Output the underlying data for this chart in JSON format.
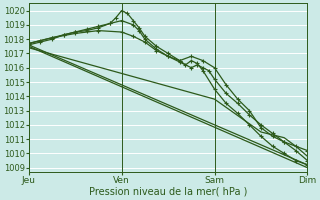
{
  "bg_color": "#cceae7",
  "grid_color": "#ffffff",
  "line_color": "#2d5a1b",
  "xlabel": "Pression niveau de la mer( hPa )",
  "yticks": [
    1009,
    1010,
    1011,
    1012,
    1013,
    1014,
    1015,
    1016,
    1017,
    1018,
    1019,
    1020
  ],
  "ylim": [
    1008.7,
    1020.5
  ],
  "xlim": [
    0,
    96
  ],
  "xtick_labels": [
    "Jeu",
    "Ven",
    "Sam",
    "Dim"
  ],
  "xtick_positions": [
    0,
    32,
    64,
    96
  ],
  "line_width": 0.9,
  "marker_size": 3.5,
  "lines": [
    {
      "x": [
        0,
        4,
        8,
        12,
        16,
        20,
        24,
        28,
        30,
        32,
        34,
        36,
        38,
        40,
        44,
        48,
        52,
        54,
        56,
        58,
        60,
        64,
        68,
        72,
        76,
        80,
        84,
        88,
        92,
        96
      ],
      "y": [
        1017.7,
        1017.9,
        1018.1,
        1018.3,
        1018.5,
        1018.6,
        1018.8,
        1019.1,
        1019.5,
        1020.0,
        1019.8,
        1019.3,
        1018.8,
        1018.2,
        1017.5,
        1017.0,
        1016.5,
        1016.2,
        1016.5,
        1016.3,
        1015.8,
        1014.5,
        1013.5,
        1012.8,
        1012.0,
        1011.2,
        1010.5,
        1010.0,
        1009.5,
        1009.2
      ],
      "marker": true
    },
    {
      "x": [
        0,
        4,
        8,
        12,
        16,
        20,
        24,
        28,
        32,
        36,
        38,
        40,
        44,
        48,
        52,
        56,
        58,
        60,
        62,
        64,
        68,
        72,
        76,
        80,
        84,
        88,
        92,
        96
      ],
      "y": [
        1017.6,
        1017.8,
        1018.0,
        1018.3,
        1018.5,
        1018.7,
        1018.9,
        1019.1,
        1019.3,
        1019.0,
        1018.6,
        1018.0,
        1017.3,
        1016.8,
        1016.4,
        1016.0,
        1016.2,
        1016.0,
        1015.8,
        1015.2,
        1014.2,
        1013.5,
        1012.7,
        1012.0,
        1011.4,
        1010.8,
        1010.2,
        1009.5
      ],
      "marker": true
    },
    {
      "x": [
        0,
        8,
        16,
        24,
        32,
        36,
        40,
        44,
        48,
        52,
        56,
        60,
        64,
        68,
        72,
        76,
        80,
        84,
        88,
        92,
        96
      ],
      "y": [
        1017.7,
        1018.1,
        1018.4,
        1018.6,
        1018.5,
        1018.2,
        1017.8,
        1017.2,
        1016.8,
        1016.5,
        1016.8,
        1016.5,
        1016.0,
        1014.8,
        1013.8,
        1013.0,
        1011.8,
        1011.2,
        1010.8,
        1010.5,
        1010.2
      ],
      "marker": true
    },
    {
      "x": [
        0,
        96
      ],
      "y": [
        1017.5,
        1009.0
      ],
      "marker": false
    },
    {
      "x": [
        0,
        96
      ],
      "y": [
        1017.6,
        1009.2
      ],
      "marker": false
    },
    {
      "x": [
        0,
        64,
        80,
        84,
        88,
        92,
        96
      ],
      "y": [
        1017.4,
        1013.8,
        1011.5,
        1011.3,
        1011.1,
        1010.5,
        1009.8
      ],
      "marker": false
    }
  ]
}
